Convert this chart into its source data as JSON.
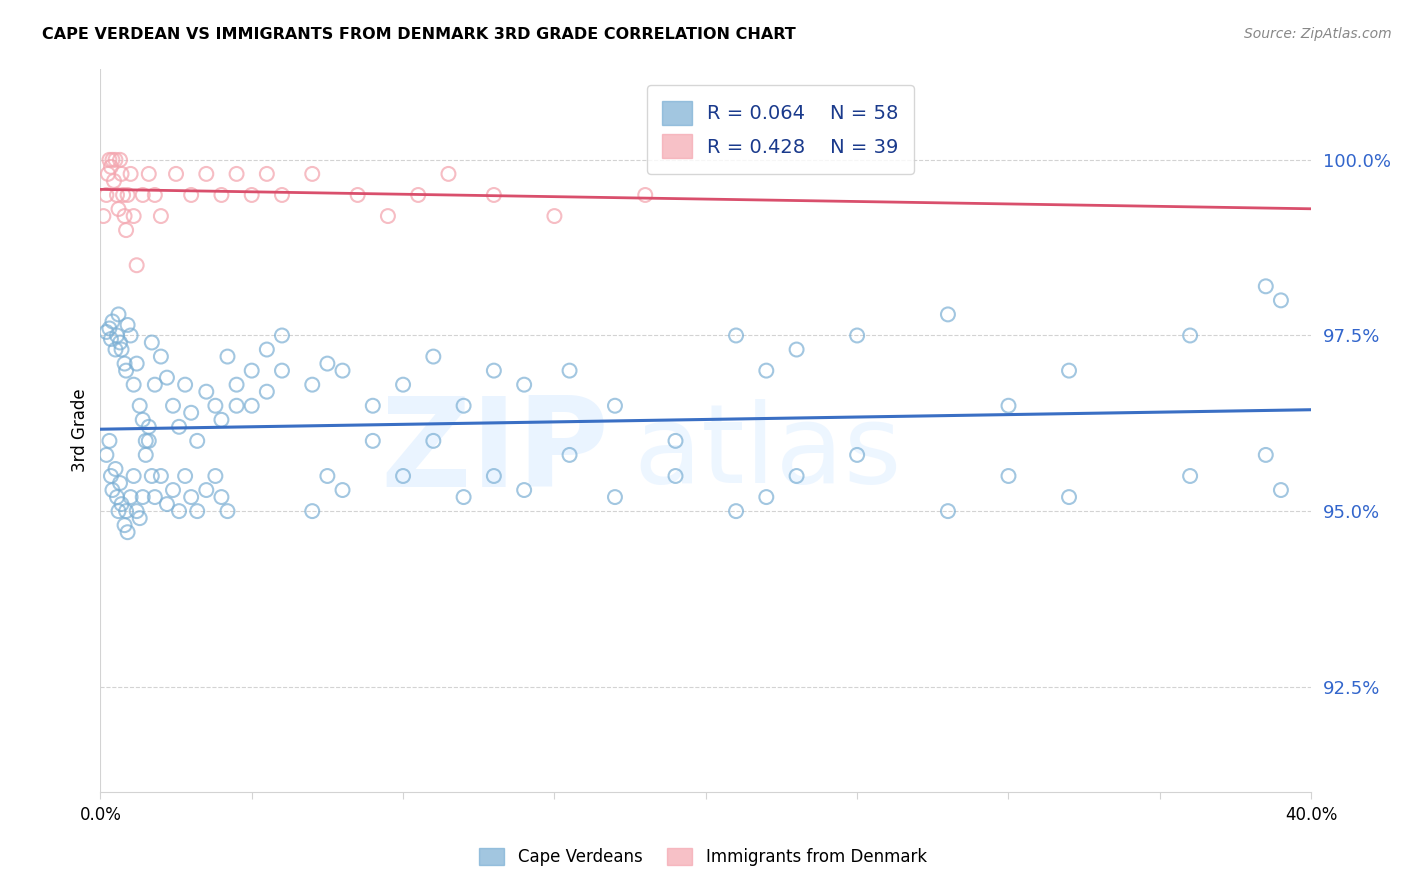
{
  "title": "CAPE VERDEAN VS IMMIGRANTS FROM DENMARK 3RD GRADE CORRELATION CHART",
  "source": "Source: ZipAtlas.com",
  "ylabel": "3rd Grade",
  "y_ticks": [
    92.5,
    95.0,
    97.5,
    100.0
  ],
  "y_tick_labels": [
    "92.5%",
    "95.0%",
    "97.5%",
    "100.0%"
  ],
  "xlim": [
    0.0,
    40.0
  ],
  "ylim": [
    91.0,
    101.3
  ],
  "blue_color": "#7BAFD4",
  "pink_color": "#F4A7B0",
  "blue_line_color": "#3A6FC4",
  "pink_line_color": "#D94F6C",
  "cape_verdean_x": [
    0.2,
    0.3,
    0.35,
    0.4,
    0.5,
    0.55,
    0.6,
    0.65,
    0.7,
    0.8,
    0.85,
    0.9,
    1.0,
    1.1,
    1.2,
    1.3,
    1.4,
    1.5,
    1.6,
    1.7,
    1.8,
    2.0,
    2.2,
    2.4,
    2.6,
    2.8,
    3.0,
    3.2,
    3.5,
    3.8,
    4.0,
    4.2,
    4.5,
    5.0,
    5.5,
    6.0,
    7.0,
    7.5,
    8.0,
    9.0,
    10.0,
    11.0,
    12.0,
    13.0,
    14.0,
    15.5,
    17.0,
    19.0,
    21.0,
    22.0,
    23.0,
    25.0,
    28.0,
    30.0,
    32.0,
    36.0,
    38.5,
    39.0
  ],
  "cape_verdean_y": [
    97.55,
    97.6,
    97.45,
    97.7,
    97.3,
    97.5,
    97.8,
    97.4,
    97.3,
    97.1,
    97.0,
    97.65,
    97.5,
    96.8,
    97.1,
    96.5,
    96.3,
    96.0,
    96.2,
    97.4,
    96.8,
    97.2,
    96.9,
    96.5,
    96.2,
    96.8,
    96.4,
    96.0,
    96.7,
    96.5,
    96.3,
    97.2,
    96.8,
    96.5,
    96.7,
    97.0,
    96.8,
    97.1,
    97.0,
    96.5,
    96.8,
    97.2,
    96.5,
    97.0,
    96.8,
    97.0,
    96.5,
    96.0,
    97.5,
    97.0,
    97.3,
    97.5,
    97.8,
    96.5,
    97.0,
    97.5,
    98.2,
    98.0
  ],
  "cape_verdean_y_low": [
    95.8,
    96.0,
    95.5,
    95.3,
    95.6,
    95.2,
    95.0,
    95.4,
    95.1,
    94.8,
    95.0,
    94.7,
    95.2,
    95.5,
    95.0,
    94.9,
    95.2,
    95.8,
    96.0,
    95.5,
    95.2,
    95.5,
    95.1,
    95.3,
    95.0,
    95.5,
    95.2,
    95.0,
    95.3,
    95.5,
    95.2,
    95.0,
    96.5,
    97.0,
    97.3,
    97.5,
    95.0,
    95.5,
    95.3,
    96.0,
    95.5,
    96.0,
    95.2,
    95.5,
    95.3,
    95.8,
    95.2,
    95.5,
    95.0,
    95.2,
    95.5,
    95.8,
    95.0,
    95.5,
    95.2,
    95.5,
    95.8,
    95.3
  ],
  "denmark_x": [
    0.1,
    0.2,
    0.25,
    0.3,
    0.35,
    0.4,
    0.45,
    0.5,
    0.55,
    0.6,
    0.65,
    0.7,
    0.75,
    0.8,
    0.85,
    0.9,
    1.0,
    1.1,
    1.2,
    1.4,
    1.6,
    1.8,
    2.0,
    2.5,
    3.0,
    3.5,
    4.0,
    4.5,
    5.0,
    5.5,
    6.0,
    7.0,
    8.5,
    9.5,
    10.5,
    11.5,
    13.0,
    15.0,
    18.0
  ],
  "denmark_y": [
    99.2,
    99.5,
    99.8,
    100.0,
    99.9,
    100.0,
    99.7,
    100.0,
    99.5,
    99.3,
    100.0,
    99.8,
    99.5,
    99.2,
    99.0,
    99.5,
    99.8,
    99.2,
    98.5,
    99.5,
    99.8,
    99.5,
    99.2,
    99.8,
    99.5,
    99.8,
    99.5,
    99.8,
    99.5,
    99.8,
    99.5,
    99.8,
    99.5,
    99.2,
    99.5,
    99.8,
    99.5,
    99.2,
    99.5
  ]
}
